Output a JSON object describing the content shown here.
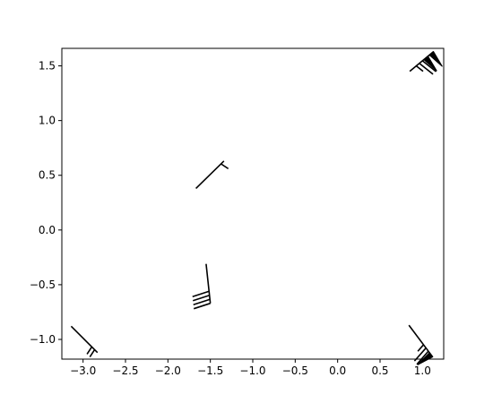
{
  "chart_data": {
    "type": "scatter",
    "mark": "wind-barb",
    "title": "",
    "xlabel": "",
    "ylabel": "",
    "xlim": [
      -3.25,
      1.25
    ],
    "ylim": [
      -1.18,
      1.66
    ],
    "xticks": [
      -3.0,
      -2.5,
      -2.0,
      -1.5,
      -1.0,
      -0.5,
      0.0,
      0.5,
      1.0
    ],
    "xtick_labels": [
      "−3.0",
      "−2.5",
      "−2.0",
      "−1.5",
      "−1.0",
      "−0.5",
      "0.0",
      "0.5",
      "1.0"
    ],
    "yticks": [
      1.5,
      1.0,
      0.5,
      0.0,
      -0.5,
      -1.0
    ],
    "ytick_labels": [
      "1.5",
      "1.0",
      "0.5",
      "0.0",
      "−0.5",
      "−1.0"
    ],
    "grid": false,
    "barbs": [
      {
        "x": -3.14,
        "y": -0.88,
        "tip_x": -2.83,
        "tip_y": -1.12,
        "flags": 0,
        "full": 0,
        "half": 2
      },
      {
        "x": -1.55,
        "y": -0.31,
        "tip_x": -1.5,
        "tip_y": -0.67,
        "flags": 0,
        "full": 4,
        "half": 0
      },
      {
        "x": -1.67,
        "y": 0.38,
        "tip_x": -1.34,
        "tip_y": 0.63,
        "flags": 0,
        "full": 0,
        "half": 1
      },
      {
        "x": 0.85,
        "y": 1.45,
        "tip_x": 1.13,
        "tip_y": 1.63,
        "flags": 2,
        "full": 2,
        "half": 1
      },
      {
        "x": 0.84,
        "y": -0.87,
        "tip_x": 1.12,
        "tip_y": -1.16,
        "flags": 1,
        "full": 2,
        "half": 1
      }
    ]
  }
}
